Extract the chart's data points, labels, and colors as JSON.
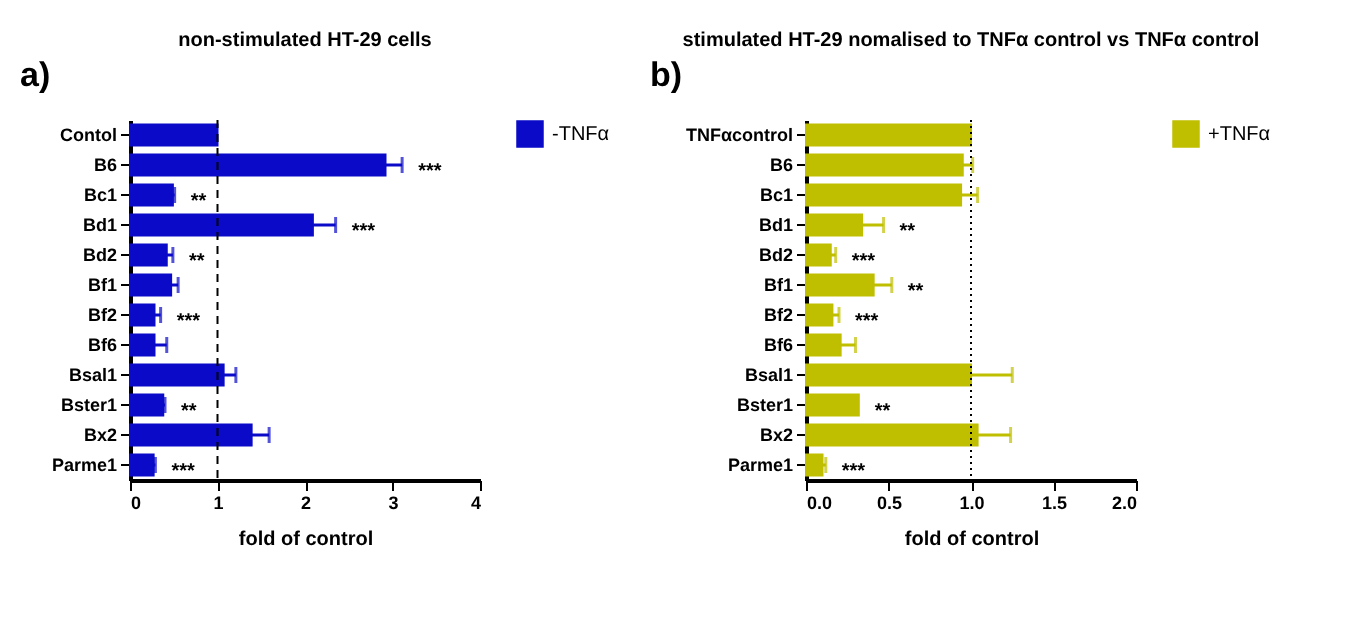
{
  "chart_data": [
    {
      "type": "bar",
      "orientation": "horizontal",
      "title": "non-stimulated HT-29 cells",
      "xlabel": "fold of control",
      "categories": [
        "Contol",
        "B6",
        "Bc1",
        "Bd1",
        "Bd2",
        "Bf1",
        "Bf2",
        "Bf6",
        "Bsal1",
        "Bster1",
        "Bx2",
        "Parme1"
      ],
      "series": [
        {
          "name": "-TNFα",
          "color": "#0a0ac8",
          "values": [
            1.0,
            2.92,
            0.49,
            2.09,
            0.42,
            0.47,
            0.28,
            0.28,
            1.07,
            0.38,
            1.39,
            0.27
          ],
          "errors": [
            null,
            [
              2.92,
              3.11
            ],
            [
              0.49,
              0.51
            ],
            [
              2.09,
              2.35
            ],
            [
              0.42,
              0.49
            ],
            [
              0.47,
              0.55
            ],
            [
              0.28,
              0.35
            ],
            [
              0.28,
              0.42
            ],
            [
              1.07,
              1.21
            ],
            [
              0.38,
              0.4
            ],
            [
              1.39,
              1.59
            ],
            [
              0.27,
              0.29
            ]
          ]
        }
      ],
      "xlim": [
        0,
        4
      ],
      "xticks": [
        0,
        1,
        2,
        3,
        4
      ],
      "grid": false,
      "legend": "right",
      "ref_lines": [
        {
          "axis": "x",
          "value": 1,
          "line_style": "dashed",
          "color": "#000000"
        }
      ],
      "annotations": [
        "a)",
        {
          "text": "***",
          "x": 3.11,
          "y": "B6"
        },
        {
          "text": "**",
          "x": 0.51,
          "y": "Bc1"
        },
        {
          "text": "***",
          "x": 2.35,
          "y": "Bd1"
        },
        {
          "text": "**",
          "x": 0.49,
          "y": "Bd2"
        },
        {
          "text": "***",
          "x": 0.35,
          "y": "Bf2"
        },
        {
          "text": "**",
          "x": 0.4,
          "y": "Bster1"
        },
        {
          "text": "***",
          "x": 0.29,
          "y": "Parme1"
        }
      ]
    },
    {
      "type": "bar",
      "orientation": "horizontal",
      "title": "stimulated HT-29 nomalised to TNFα control vs TNFα control",
      "xlabel": "fold of control",
      "categories": [
        "TNFαcontrol",
        "B6",
        "Bc1",
        "Bd1",
        "Bd2",
        "Bf1",
        "Bf2",
        "Bf6",
        "Bsal1",
        "Bster1",
        "Bx2",
        "Parme1"
      ],
      "series": [
        {
          "name": "+TNFα",
          "color": "#bfbf00",
          "values": [
            1.0,
            0.95,
            0.94,
            0.34,
            0.15,
            0.41,
            0.16,
            0.21,
            1.0,
            0.32,
            1.04,
            0.1
          ],
          "errors": [
            null,
            [
              0.95,
              1.01
            ],
            [
              0.94,
              1.04
            ],
            [
              0.34,
              0.47
            ],
            [
              0.15,
              0.18
            ],
            [
              0.41,
              0.52
            ],
            [
              0.16,
              0.2
            ],
            [
              0.21,
              0.3
            ],
            [
              1.0,
              1.25
            ],
            null,
            [
              1.04,
              1.24
            ],
            [
              0.1,
              0.12
            ]
          ]
        }
      ],
      "xlim": [
        0,
        2
      ],
      "xticks": [
        {
          "value": 0,
          "label": "0.0"
        },
        {
          "value": 0.5,
          "label": "0.5"
        },
        {
          "value": 1,
          "label": "1.0"
        },
        {
          "value": 1.5,
          "label": "1.5"
        },
        {
          "value": 2,
          "label": "2.0"
        }
      ],
      "grid": false,
      "legend": "right",
      "ref_lines": [
        {
          "axis": "x",
          "value": 1,
          "line_style": "dotted",
          "color": "#000000"
        }
      ],
      "annotations": [
        "b)",
        {
          "text": "**",
          "x": 0.47,
          "y": "Bd1"
        },
        {
          "text": "***",
          "x": 0.18,
          "y": "Bd2"
        },
        {
          "text": "**",
          "x": 0.52,
          "y": "Bf1"
        },
        {
          "text": "***",
          "x": 0.2,
          "y": "Bf2"
        },
        {
          "text": "**",
          "x": 0.32,
          "y": "Bster1"
        },
        {
          "text": "***",
          "x": 0.12,
          "y": "Parme1"
        }
      ]
    }
  ]
}
